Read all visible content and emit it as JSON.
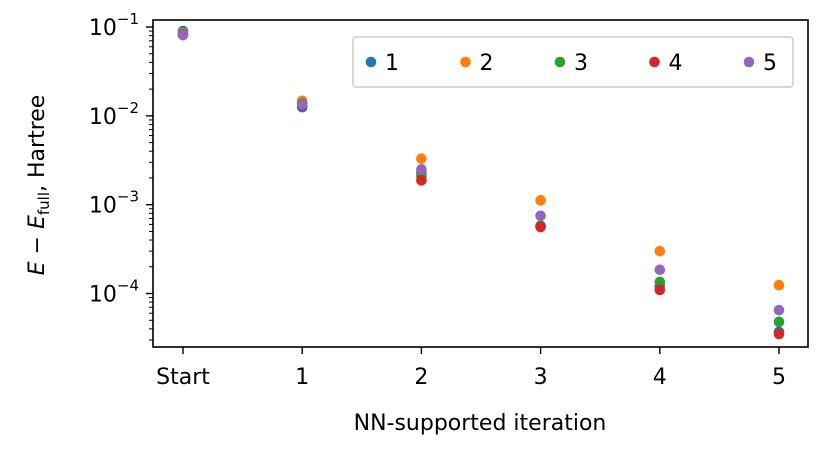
{
  "chart_data": {
    "type": "scatter",
    "categories": [
      "Start",
      "1",
      "2",
      "3",
      "4",
      "5"
    ],
    "xlabel": "NN-supported iteration",
    "ylabel": "E − E_full, Hartree",
    "ylabel_parts": {
      "main": "E",
      "op": " − E",
      "sub": "full",
      "tail": ", Hartree"
    },
    "yscale": "log",
    "ylim": [
      2.5e-05,
      0.12
    ],
    "yticks": [
      {
        "value": 0.1,
        "base": "10",
        "exp": "−1"
      },
      {
        "value": 0.01,
        "base": "10",
        "exp": "−2"
      },
      {
        "value": 0.001,
        "base": "10",
        "exp": "−3"
      },
      {
        "value": 0.0001,
        "base": "10",
        "exp": "−4"
      }
    ],
    "grid": false,
    "legend": {
      "position": "top-right",
      "ncol": 5
    },
    "series": [
      {
        "name": "1",
        "color": "#1f77b4",
        "values": [
          0.09,
          0.0125,
          0.0023,
          0.00058,
          0.00012,
          3.7e-05
        ]
      },
      {
        "name": "2",
        "color": "#ff7f0e",
        "values": [
          0.085,
          0.0148,
          0.0033,
          0.00112,
          0.0003,
          0.000124
        ]
      },
      {
        "name": "3",
        "color": "#2ca02c",
        "values": [
          0.083,
          0.0138,
          0.0021,
          0.00058,
          0.000135,
          4.8e-05
        ]
      },
      {
        "name": "4",
        "color": "#d62728",
        "values": [
          0.082,
          0.0133,
          0.00188,
          0.00056,
          0.00011,
          3.5e-05
        ]
      },
      {
        "name": "5",
        "color": "#9467bd",
        "values": [
          0.081,
          0.0135,
          0.0025,
          0.00075,
          0.000185,
          6.5e-05
        ]
      }
    ]
  }
}
